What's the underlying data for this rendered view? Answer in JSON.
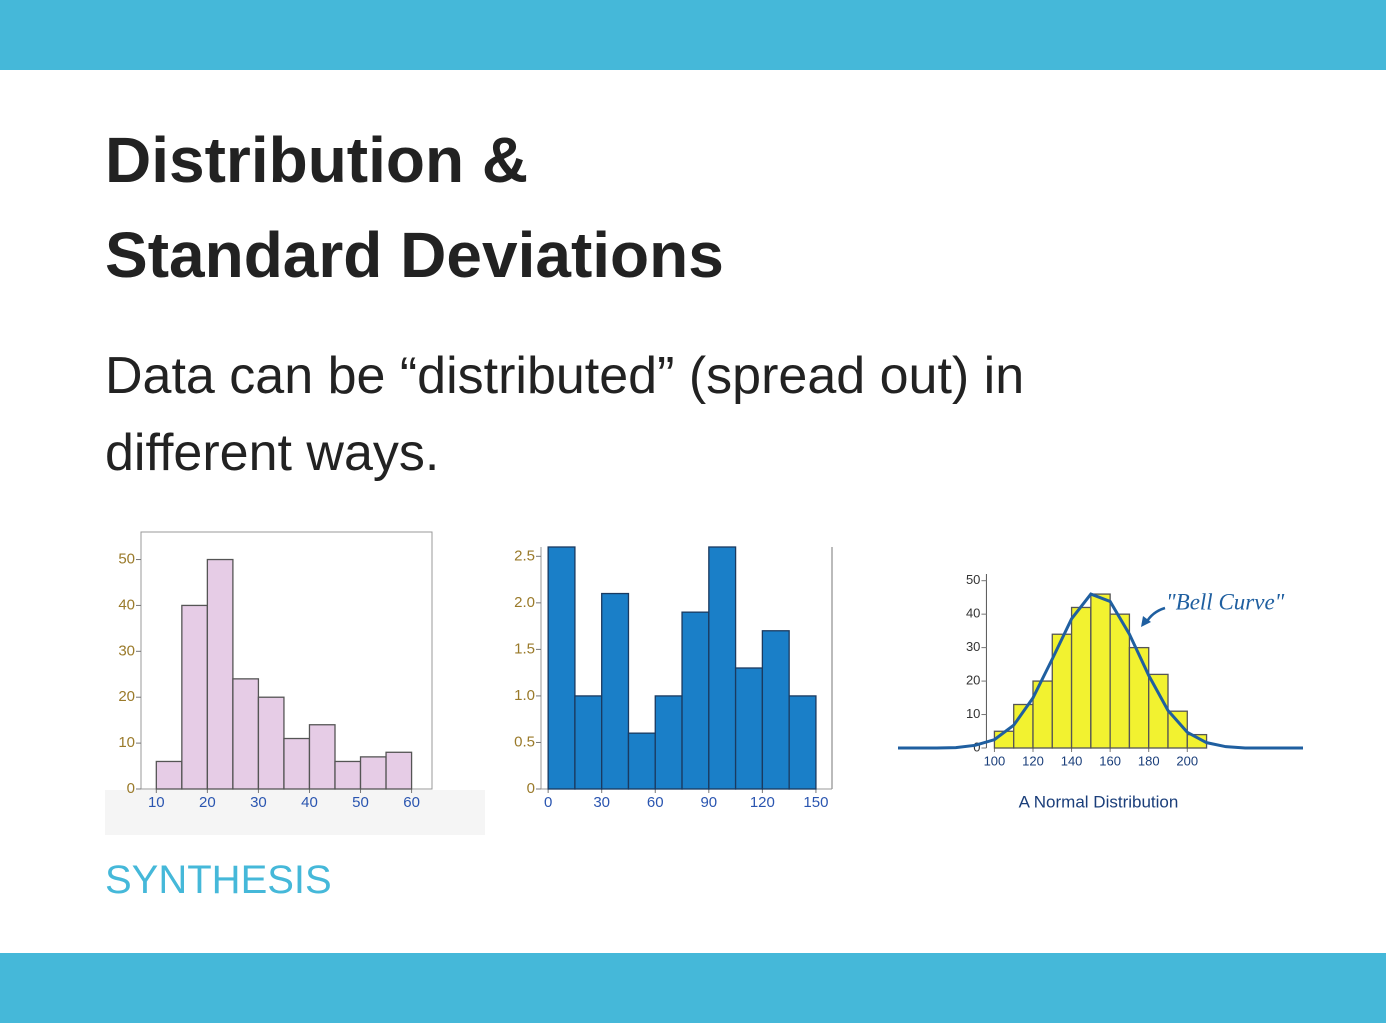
{
  "title": [
    "Distribution &",
    "Standard Deviations"
  ],
  "body": [
    "Data can be “distributed” (spread out) in",
    "different ways."
  ],
  "footer": "SYNTHESIS",
  "chart_data": [
    {
      "type": "histogram",
      "bins": [
        10,
        15,
        20,
        25,
        30,
        35,
        40,
        45,
        50,
        55,
        60
      ],
      "values": [
        6,
        40,
        50,
        24,
        20,
        11,
        14,
        6,
        7,
        8
      ],
      "color": "#e6cce6",
      "xlim": [
        7,
        64
      ],
      "ylim": [
        0,
        56
      ],
      "xticks": [
        10,
        20,
        30,
        40,
        50,
        60
      ],
      "yticks": [
        0,
        10,
        20,
        30,
        40,
        50
      ]
    },
    {
      "type": "histogram",
      "bins": [
        0,
        15,
        30,
        45,
        60,
        75,
        90,
        105,
        120,
        135,
        150
      ],
      "values": [
        2.6,
        1.0,
        2.1,
        0.6,
        1.0,
        1.9,
        2.6,
        1.3,
        1.7,
        1.0
      ],
      "color": "#1a7fc8",
      "xlim": [
        -4,
        159
      ],
      "ylim": [
        0,
        2.6
      ],
      "xticks": [
        0,
        30,
        60,
        90,
        120,
        150
      ],
      "yticks": [
        0,
        0.5,
        {
          "value": 1,
          "label": "1.0"
        },
        1.5,
        {
          "value": 2,
          "label": "2.0"
        },
        2.5
      ]
    },
    {
      "type": "histogram",
      "bins": [
        100,
        110,
        120,
        130,
        140,
        150,
        160,
        170,
        180,
        190,
        200,
        210
      ],
      "values": [
        5,
        13,
        20,
        34,
        42,
        46,
        40,
        30,
        22,
        11,
        4
      ],
      "color": "#f2f230",
      "xlim": [
        50,
        260
      ],
      "ylim": [
        0,
        52
      ],
      "xticks": [
        100,
        120,
        140,
        160,
        180,
        200
      ],
      "yticks": [
        0,
        10,
        20,
        30,
        40,
        50
      ],
      "x_label": "A Normal Distribution",
      "annotation": "\"Bell Curve\"",
      "curve": {
        "color": "#1f5fa0",
        "x": [
          50,
          60,
          70,
          80,
          90,
          100,
          110,
          120,
          130,
          140,
          150,
          160,
          170,
          180,
          190,
          200,
          210,
          220,
          230,
          240,
          250,
          260
        ],
        "values": [
          0,
          0,
          0,
          0.1,
          0.8,
          2.5,
          6.8,
          15,
          26.6,
          38.6,
          46,
          43.8,
          34,
          21.7,
          11.2,
          4.7,
          1.6,
          0.4,
          0,
          0,
          0,
          0
        ]
      }
    }
  ]
}
